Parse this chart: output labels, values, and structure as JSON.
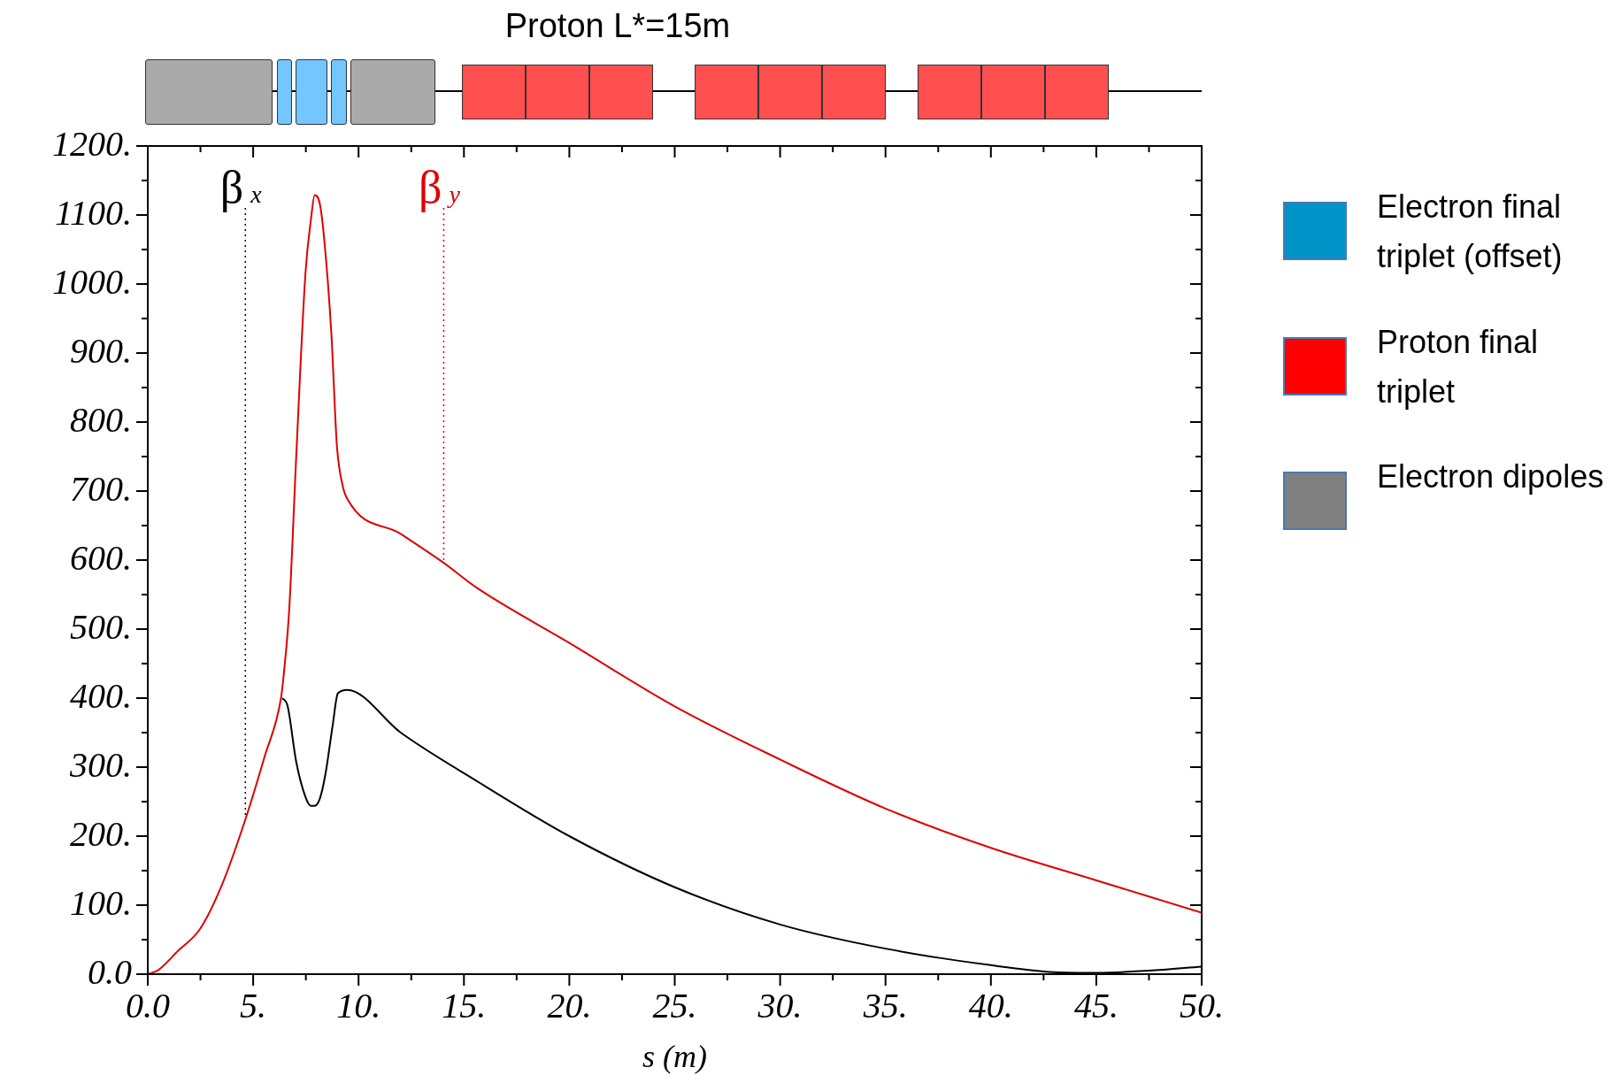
{
  "chart_data": {
    "type": "line",
    "title": "Proton L*=15m",
    "xlabel": "s (m)",
    "series": [
      {
        "color": "#000000",
        "x": [
          6.38,
          6.63,
          7.04,
          7.48,
          7.74,
          7.92,
          8.17,
          8.43,
          8.77,
          9.02,
          9.46,
          12,
          15.6,
          20,
          25,
          30,
          35,
          40,
          43,
          45,
          47.5,
          50
        ],
        "values": [
          400,
          389,
          308,
          257,
          244,
          244,
          255,
          290,
          360,
          407,
          412,
          350,
          280,
          200,
          126,
          72,
          37,
          13,
          3,
          2,
          5,
          11
        ]
      },
      {
        "color": "#dd0000",
        "x": [
          0,
          0.5,
          1.44,
          2.47,
          3.5,
          4.65,
          5.55,
          6.32,
          6.45,
          6.71,
          7.04,
          7.48,
          7.74,
          7.92,
          8.17,
          8.38,
          8.71,
          8.97,
          9.23,
          9.46,
          12,
          14.04,
          15.6,
          20,
          25,
          30,
          35,
          40,
          45,
          50
        ],
        "values": [
          0,
          6,
          34,
          65,
          128,
          226,
          316,
          400,
          434,
          528,
          748,
          1015,
          1093,
          1129,
          1115,
          1062,
          928,
          767,
          710,
          689,
          638,
          596,
          560,
          480,
          388,
          311,
          240,
          183,
          136,
          89
        ]
      }
    ],
    "xlim": [
      0,
      50
    ],
    "xticks": [
      {
        "value": 0,
        "label": "0.0"
      },
      {
        "value": 2.5,
        "label": null
      },
      {
        "value": 5,
        "label": "5."
      },
      {
        "value": 7.5,
        "label": null
      },
      {
        "value": 10,
        "label": "10."
      },
      {
        "value": 12.5,
        "label": null
      },
      {
        "value": 15,
        "label": "15."
      },
      {
        "value": 17.5,
        "label": null
      },
      {
        "value": 20,
        "label": "20."
      },
      {
        "value": 22.5,
        "label": null
      },
      {
        "value": 25,
        "label": "25."
      },
      {
        "value": 27.5,
        "label": null
      },
      {
        "value": 30,
        "label": "30."
      },
      {
        "value": 32.5,
        "label": null
      },
      {
        "value": 35,
        "label": "35."
      },
      {
        "value": 37.5,
        "label": null
      },
      {
        "value": 40,
        "label": "40."
      },
      {
        "value": 42.5,
        "label": null
      },
      {
        "value": 45,
        "label": "45."
      },
      {
        "value": 47.5,
        "label": null
      },
      {
        "value": 50,
        "label": "50."
      }
    ],
    "ylim": [
      0,
      1200
    ],
    "yticks": [
      {
        "value": 0,
        "label": "0.0"
      },
      {
        "value": 50,
        "label": null
      },
      {
        "value": 100,
        "label": "100."
      },
      {
        "value": 150,
        "label": null
      },
      {
        "value": 200,
        "label": "200."
      },
      {
        "value": 250,
        "label": null
      },
      {
        "value": 300,
        "label": "300."
      },
      {
        "value": 350,
        "label": null
      },
      {
        "value": 400,
        "label": "400."
      },
      {
        "value": 450,
        "label": null
      },
      {
        "value": 500,
        "label": "500."
      },
      {
        "value": 550,
        "label": null
      },
      {
        "value": 600,
        "label": "600."
      },
      {
        "value": 650,
        "label": null
      },
      {
        "value": 700,
        "label": "700."
      },
      {
        "value": 750,
        "label": null
      },
      {
        "value": 800,
        "label": "800."
      },
      {
        "value": 850,
        "label": null
      },
      {
        "value": 900,
        "label": "900."
      },
      {
        "value": 950,
        "label": null
      },
      {
        "value": 1000,
        "label": "1000."
      },
      {
        "value": 1050,
        "label": null
      },
      {
        "value": 1100,
        "label": "1100."
      },
      {
        "value": 1150,
        "label": null
      },
      {
        "value": 1200,
        "label": "1200."
      }
    ],
    "annotations": [
      {
        "text": "β$_{x}$",
        "x": 4.63,
        "y": 226
      },
      {
        "text": "β$_{y}$",
        "x": 14.04,
        "y": 596
      },
      "Electron final triplet (offset)",
      "Proton final triplet",
      "Electron dipoles"
    ],
    "grid": false,
    "legend": false,
    "marker": "none",
    "line_style": "solid"
  }
}
